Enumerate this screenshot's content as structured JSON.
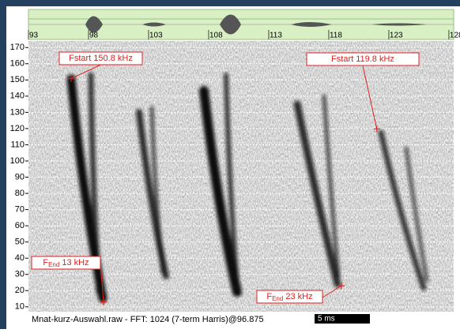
{
  "chart_data": {
    "type": "spectrogram",
    "xlim": [
      93,
      128.4
    ],
    "xticks": [
      93,
      98,
      103,
      108,
      113,
      118,
      123,
      128
    ],
    "ylim": [
      7,
      174
    ],
    "yticks": [
      10,
      20,
      30,
      40,
      50,
      60,
      70,
      80,
      90,
      100,
      110,
      120,
      130,
      140,
      150,
      160,
      170
    ],
    "grid": true,
    "annotations": [
      {
        "text": "Fstart 150.8 kHz",
        "x": 96.55,
        "y": 150.8
      },
      {
        "text": "Fstart 119.8 kHz",
        "x": 122.0,
        "y": 119.8
      },
      {
        "prefix": "F",
        "sub": "End",
        "text": " 13 kHz",
        "x": 99.25,
        "y": 13
      },
      {
        "prefix": "F",
        "sub": "End",
        "text": " 23 kHz",
        "x": 119.05,
        "y": 23
      }
    ],
    "footer": "Mnat-kurz-Auswahl.raw - FFT: 1024 (7-term Harris)@96.875",
    "scale_bar": "5 ms",
    "color": "#e02020"
  }
}
